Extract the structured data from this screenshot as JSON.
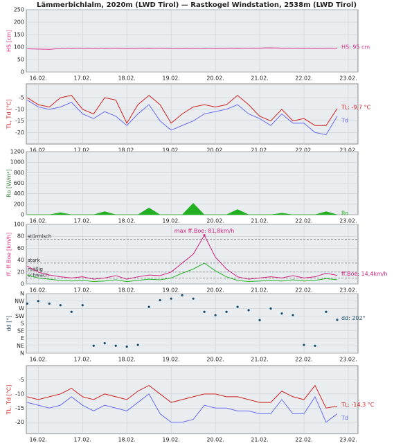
{
  "title": "Lämmerbichlalm, 2020m (LWD Tirol) — Rastkogel Windstation, 2538m (LWD Tirol)",
  "chart_data": [
    {
      "type": "line",
      "ylabel": "HS [cm]",
      "label_color": "#e0308a",
      "xlim": [
        15.73,
        23.22
      ],
      "xticks": [
        {
          "value": 16,
          "label": "16.02."
        },
        {
          "value": 17,
          "label": "17.02."
        },
        {
          "value": 18,
          "label": "18.02."
        },
        {
          "value": 19,
          "label": "19.02."
        },
        {
          "value": 20,
          "label": "20.02."
        },
        {
          "value": 21,
          "label": "21.02."
        },
        {
          "value": 22,
          "label": "22.02."
        },
        {
          "value": 23,
          "label": "23.02."
        }
      ],
      "ylim": [
        0,
        250
      ],
      "yticks": [
        0,
        50,
        100,
        150,
        200,
        250
      ],
      "grid": true,
      "x": [
        15.75,
        16,
        16.25,
        16.5,
        16.75,
        17,
        17.25,
        17.5,
        17.75,
        18,
        18.25,
        18.5,
        18.75,
        19,
        19.25,
        19.5,
        19.75,
        20,
        20.25,
        20.5,
        20.75,
        21,
        21.25,
        21.5,
        21.75,
        22,
        22.25,
        22.5,
        22.75
      ],
      "series": [
        {
          "name": "HS: 95 cm",
          "color": "#e0308a",
          "values": [
            93,
            92,
            91,
            94,
            96,
            95,
            94,
            96,
            95,
            94,
            95,
            96,
            95,
            94,
            93,
            94,
            95,
            94,
            95,
            96,
            95,
            96,
            97,
            96,
            95,
            96,
            94,
            95,
            95
          ]
        }
      ]
    },
    {
      "type": "line",
      "ylabel": "TL, Td [°C]",
      "label_color": "#d02020",
      "xlim": [
        15.73,
        23.22
      ],
      "xticks": [
        {
          "value": 16,
          "label": "16.02."
        },
        {
          "value": 17,
          "label": "17.02."
        },
        {
          "value": 18,
          "label": "18.02."
        },
        {
          "value": 19,
          "label": "19.02."
        },
        {
          "value": 20,
          "label": "20.02."
        },
        {
          "value": 21,
          "label": "21.02."
        },
        {
          "value": 22,
          "label": "22.02."
        },
        {
          "value": 23,
          "label": "23.02."
        }
      ],
      "ylim": [
        -25,
        1
      ],
      "yticks": [
        -20,
        -15,
        -10,
        -5
      ],
      "grid": true,
      "x": [
        15.75,
        16,
        16.25,
        16.5,
        16.75,
        17,
        17.25,
        17.5,
        17.75,
        18,
        18.25,
        18.5,
        18.75,
        19,
        19.25,
        19.5,
        19.75,
        20,
        20.25,
        20.5,
        20.75,
        21,
        21.25,
        21.5,
        21.75,
        22,
        22.25,
        22.5,
        22.75
      ],
      "series": [
        {
          "name": "TL: -9,7 °C",
          "color": "#d02020",
          "values": [
            -5,
            -8,
            -9,
            -5,
            -4,
            -10,
            -12,
            -5,
            -6,
            -16,
            -8,
            -4,
            -8,
            -16,
            -12,
            -9,
            -8,
            -9,
            -8,
            -4,
            -8,
            -13,
            -15,
            -10,
            -15,
            -14,
            -17,
            -17,
            -9.7
          ]
        },
        {
          "name": "Td",
          "color": "#6a6af0",
          "values": [
            -6,
            -9,
            -10,
            -9,
            -7,
            -12,
            -14,
            -11,
            -13,
            -17,
            -12,
            -8,
            -15,
            -19,
            -17,
            -15,
            -12,
            -11,
            -10,
            -8,
            -12,
            -14,
            -17,
            -12,
            -16,
            -16,
            -20,
            -21,
            -13
          ]
        }
      ]
    },
    {
      "type": "area",
      "ylabel": "Ro [W/m²]",
      "label_color": "#2a7a2a",
      "xlim": [
        15.73,
        23.22
      ],
      "xticks": [
        {
          "value": 16,
          "label": "16.02."
        },
        {
          "value": 17,
          "label": "17.02."
        },
        {
          "value": 18,
          "label": "18.02."
        },
        {
          "value": 19,
          "label": "19.02."
        },
        {
          "value": 20,
          "label": "20.02."
        },
        {
          "value": 21,
          "label": "21.02."
        },
        {
          "value": 22,
          "label": "22.02."
        },
        {
          "value": 23,
          "label": "23.02."
        }
      ],
      "ylim": [
        0,
        1200
      ],
      "yticks": [
        0,
        200,
        400,
        600,
        800,
        1000,
        1200
      ],
      "grid": true,
      "x": [
        15.75,
        16,
        16.25,
        16.5,
        16.75,
        17,
        17.25,
        17.5,
        17.75,
        18,
        18.25,
        18.5,
        18.75,
        19,
        19.25,
        19.5,
        19.75,
        20,
        20.25,
        20.5,
        20.75,
        21,
        21.25,
        21.5,
        21.75,
        22,
        22.25,
        22.5,
        22.75
      ],
      "series": [
        {
          "name": "Ro",
          "color": "#22b022",
          "values": [
            0,
            0,
            0,
            40,
            0,
            0,
            0,
            60,
            0,
            0,
            0,
            130,
            0,
            0,
            0,
            220,
            0,
            0,
            0,
            100,
            0,
            0,
            0,
            30,
            0,
            0,
            0,
            60,
            0
          ]
        }
      ]
    },
    {
      "type": "line",
      "ylabel": "ff, ff.Boe [km/h]",
      "label_color": "#e0308a",
      "xlim": [
        15.73,
        23.22
      ],
      "xticks": [
        {
          "value": 16,
          "label": "16.02."
        },
        {
          "value": 17,
          "label": "17.02."
        },
        {
          "value": 18,
          "label": "18.02."
        },
        {
          "value": 19,
          "label": "19.02."
        },
        {
          "value": 20,
          "label": "20.02."
        },
        {
          "value": 21,
          "label": "21.02."
        },
        {
          "value": 22,
          "label": "22.02."
        },
        {
          "value": 23,
          "label": "23.02."
        }
      ],
      "ylim": [
        0,
        100
      ],
      "yticks": [
        0,
        20,
        40,
        60,
        80,
        100
      ],
      "grid": true,
      "levels": [
        {
          "value": 75,
          "label": "stürmisch"
        },
        {
          "value": 35,
          "label": "stark"
        },
        {
          "value": 20,
          "label": "mäßig"
        },
        {
          "value": 10,
          "label": "schwach"
        }
      ],
      "annotations": [
        {
          "text": "max ff.Boe: 81,8km/h",
          "x": 19.75,
          "y": 81.8
        }
      ],
      "x": [
        15.75,
        16,
        16.25,
        16.5,
        16.75,
        17,
        17.25,
        17.5,
        17.75,
        18,
        18.25,
        18.5,
        18.75,
        19,
        19.25,
        19.5,
        19.75,
        20,
        20.25,
        20.5,
        20.75,
        21,
        21.25,
        21.5,
        21.75,
        22,
        22.25,
        22.5,
        22.75
      ],
      "series": [
        {
          "name": "ff.Boe: 14,4km/h",
          "color": "#d0207a",
          "values": [
            30,
            20,
            15,
            12,
            10,
            12,
            8,
            10,
            14,
            8,
            12,
            15,
            14,
            20,
            35,
            50,
            81.8,
            45,
            25,
            12,
            8,
            10,
            12,
            10,
            14,
            10,
            12,
            18,
            14.4
          ]
        },
        {
          "color": "#22b022",
          "values": [
            15,
            10,
            8,
            6,
            5,
            6,
            4,
            5,
            7,
            4,
            6,
            8,
            7,
            10,
            18,
            25,
            35,
            22,
            12,
            6,
            4,
            5,
            6,
            5,
            7,
            5,
            6,
            9,
            7
          ]
        }
      ]
    },
    {
      "type": "scatter",
      "ylabel": "dd [°]",
      "label_color": "#1a3a5a",
      "xlim": [
        15.73,
        23.22
      ],
      "xticks": [
        {
          "value": 16,
          "label": "16.02."
        },
        {
          "value": 17,
          "label": "17.02."
        },
        {
          "value": 18,
          "label": "18.02."
        },
        {
          "value": 19,
          "label": "19.02."
        },
        {
          "value": 20,
          "label": "20.02."
        },
        {
          "value": 21,
          "label": "21.02."
        },
        {
          "value": 22,
          "label": "22.02."
        },
        {
          "value": 23,
          "label": "23.02."
        }
      ],
      "ylim": [
        0,
        360
      ],
      "yticks": [
        {
          "value": 0,
          "label": "N"
        },
        {
          "value": 45,
          "label": "NE"
        },
        {
          "value": 90,
          "label": "E"
        },
        {
          "value": 135,
          "label": "SE"
        },
        {
          "value": 180,
          "label": "S"
        },
        {
          "value": 225,
          "label": "SW"
        },
        {
          "value": 270,
          "label": "W"
        },
        {
          "value": 315,
          "label": "NW"
        },
        {
          "value": 360,
          "label": "N"
        }
      ],
      "grid": true,
      "x": [
        15.75,
        16,
        16.25,
        16.5,
        16.75,
        17,
        17.25,
        17.5,
        17.75,
        18,
        18.25,
        18.5,
        18.75,
        19,
        19.25,
        19.5,
        19.75,
        20,
        20.25,
        20.5,
        20.75,
        21,
        21.25,
        21.5,
        21.75,
        22,
        22.25,
        22.5,
        22.75
      ],
      "series": [
        {
          "name": "dd: 202°",
          "color": "#1a4a6a",
          "values": [
            300,
            315,
            300,
            290,
            250,
            290,
            45,
            60,
            45,
            40,
            50,
            280,
            320,
            330,
            350,
            330,
            250,
            230,
            250,
            280,
            260,
            200,
            270,
            240,
            230,
            50,
            45,
            250,
            202
          ]
        }
      ]
    },
    {
      "type": "line",
      "ylabel": "TL, Td [°C]",
      "label_color": "#d02020",
      "xlim": [
        15.73,
        23.22
      ],
      "xticks": [
        {
          "value": 16,
          "label": "16.02."
        },
        {
          "value": 17,
          "label": "17.02."
        },
        {
          "value": 18,
          "label": "18.02."
        },
        {
          "value": 19,
          "label": "19.02."
        },
        {
          "value": 20,
          "label": "20.02."
        },
        {
          "value": 21,
          "label": "21.02."
        },
        {
          "value": 22,
          "label": "22.02."
        },
        {
          "value": 23,
          "label": "23.02."
        }
      ],
      "ylim": [
        -24,
        0
      ],
      "yticks": [
        -20,
        -15,
        -10,
        -5
      ],
      "grid": true,
      "x": [
        15.75,
        16,
        16.25,
        16.5,
        16.75,
        17,
        17.25,
        17.5,
        17.75,
        18,
        18.25,
        18.5,
        18.75,
        19,
        19.25,
        19.5,
        19.75,
        20,
        20.25,
        20.5,
        20.75,
        21,
        21.25,
        21.5,
        21.75,
        22,
        22.25,
        22.5,
        22.75
      ],
      "series": [
        {
          "name": "TL: -14,3 °C",
          "color": "#d02020",
          "values": [
            -11,
            -12,
            -11,
            -10,
            -8,
            -11,
            -12,
            -10,
            -11,
            -12,
            -9,
            -7,
            -10,
            -13,
            -12,
            -11,
            -10,
            -10,
            -11,
            -11,
            -12,
            -13,
            -13,
            -9,
            -11,
            -12,
            -7,
            -15,
            -14.3
          ]
        },
        {
          "name": "Td",
          "color": "#6a6af0",
          "values": [
            -13,
            -14,
            -15,
            -14,
            -11,
            -14,
            -16,
            -14,
            -15,
            -16,
            -13,
            -10,
            -17,
            -20,
            -20,
            -19,
            -14,
            -15,
            -15,
            -16,
            -16,
            -17,
            -17,
            -12,
            -17,
            -17,
            -11,
            -20,
            -17
          ]
        }
      ]
    }
  ]
}
